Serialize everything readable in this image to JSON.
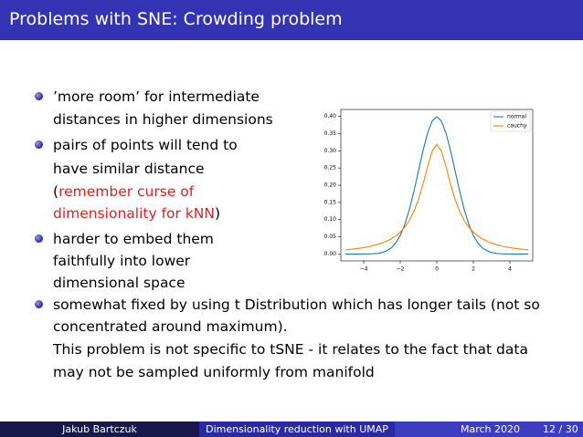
{
  "header": {
    "title": "Problems with SNE: Crowding problem"
  },
  "bullets": [
    {
      "lines": [
        "’more room’ for intermediate",
        "distances in higher dimensions"
      ]
    },
    {
      "lines": [
        [
          "pairs of points will tend to"
        ],
        [
          "have similar distance"
        ],
        [
          "(",
          "remember curse of"
        ],
        [
          "dimensionality for kNN",
          ")"
        ]
      ]
    },
    {
      "lines": [
        "harder to embed them",
        "faithfully into lower",
        "dimensional space"
      ]
    },
    {
      "lines": [
        "somewhat fixed by using t Distribution which has longer tails (not so",
        "concentrated around maximum).",
        "This problem is not specific to tSNE - it relates to the fact that data",
        "may not be sampled uniformly from manifold"
      ]
    }
  ],
  "chart_data": {
    "type": "line",
    "x": [
      -5,
      -4.75,
      -4.5,
      -4.25,
      -4,
      -3.75,
      -3.5,
      -3.25,
      -3,
      -2.75,
      -2.5,
      -2.25,
      -2,
      -1.75,
      -1.5,
      -1.25,
      -1,
      -0.75,
      -0.5,
      -0.25,
      0,
      0.25,
      0.5,
      0.75,
      1,
      1.25,
      1.5,
      1.75,
      2,
      2.25,
      2.5,
      2.75,
      3,
      3.25,
      3.5,
      3.75,
      4,
      4.25,
      4.5,
      4.75,
      5
    ],
    "series": [
      {
        "name": "normal",
        "color": "#1f77b4",
        "values": [
          0,
          0,
          0,
          0,
          0.0001,
          0.0004,
          0.0009,
          0.002,
          0.0044,
          0.0091,
          0.0175,
          0.0317,
          0.054,
          0.0863,
          0.1295,
          0.1826,
          0.242,
          0.3011,
          0.3521,
          0.3867,
          0.3989,
          0.3867,
          0.3521,
          0.3011,
          0.242,
          0.1826,
          0.1295,
          0.0863,
          0.054,
          0.0317,
          0.0175,
          0.0091,
          0.0044,
          0.002,
          0.0009,
          0.0004,
          0.0001,
          0,
          0,
          0,
          0
        ]
      },
      {
        "name": "cauchy",
        "color": "#ff7f0e",
        "values": [
          0.0122,
          0.0135,
          0.015,
          0.0167,
          0.0187,
          0.0211,
          0.024,
          0.0275,
          0.0318,
          0.0372,
          0.0439,
          0.0525,
          0.0637,
          0.0784,
          0.0979,
          0.1242,
          0.1592,
          0.2037,
          0.2546,
          0.2996,
          0.3183,
          0.2996,
          0.2546,
          0.2037,
          0.1592,
          0.1242,
          0.0979,
          0.0784,
          0.0637,
          0.0525,
          0.0439,
          0.0372,
          0.0318,
          0.0275,
          0.024,
          0.0211,
          0.0187,
          0.0167,
          0.015,
          0.0135,
          0.0122
        ]
      }
    ],
    "xlim": [
      -5.25,
      5.25
    ],
    "ylim": [
      -0.02,
      0.42
    ],
    "xticks": [
      {
        "value": -4,
        "label": "−4"
      },
      {
        "value": -2,
        "label": "−2"
      },
      0,
      2,
      4
    ],
    "yticks": [
      {
        "value": 0,
        "label": "0.00"
      },
      {
        "value": 0.05,
        "label": "0.05"
      },
      {
        "value": 0.1,
        "label": "0.10"
      },
      {
        "value": 0.15,
        "label": "0.15"
      },
      {
        "value": 0.2,
        "label": "0.20"
      },
      {
        "value": 0.25,
        "label": "0.25"
      },
      {
        "value": 0.3,
        "label": "0.30"
      },
      {
        "value": 0.35,
        "label": "0.35"
      },
      {
        "value": 0.4,
        "label": "0.40"
      }
    ],
    "legend": "upper right"
  },
  "footer": {
    "author": "Jakub Bartczuk",
    "talk": "Dimensionality reduction with UMAP",
    "date": "March 2020",
    "page": "12 / 30"
  }
}
